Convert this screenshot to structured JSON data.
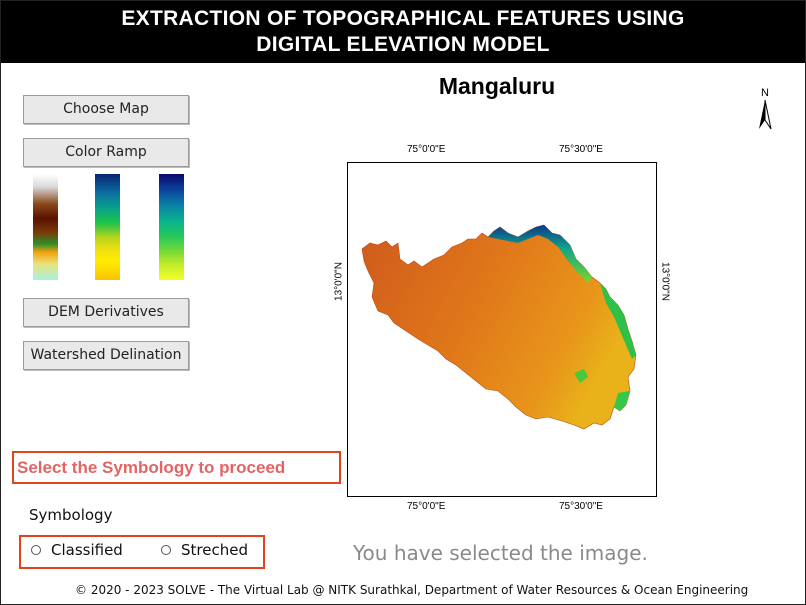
{
  "header": {
    "title_line1": "EXTRACTION OF TOPOGRAPHICAL FEATURES USING",
    "title_line2": "DIGITAL ELEVATION MODEL"
  },
  "sidebar": {
    "choose_map": "Choose Map",
    "color_ramp": "Color Ramp",
    "dem_derivatives": "DEM Derivatives",
    "watershed": "Watershed Delination",
    "ramps": [
      "terrain",
      "blue-green-yellow",
      "viridis"
    ]
  },
  "map": {
    "title": "Mangaluru",
    "north_label": "N",
    "top_ticks": [
      "75°0'0\"E",
      "75°30'0\"E"
    ],
    "bottom_ticks": [
      "75°0'0\"E",
      "75°30'0\"E"
    ],
    "left_tick": "13°0'0\"N",
    "right_tick": "13°0'0\"N"
  },
  "prompt": {
    "warning": "Select the Symbology to proceed",
    "symbology_label": "Symbology",
    "options": [
      "Classified",
      "Streched"
    ]
  },
  "status": "You have selected the image.",
  "footer": "© 2020 - 2023 SOLVE - The Virtual Lab @ NITK Surathkal, Department of Water Resources & Ocean Engineering",
  "colors": {
    "accent_border": "#e0451b",
    "warning_text": "#e36464",
    "dem_fill": "#e07a18"
  }
}
